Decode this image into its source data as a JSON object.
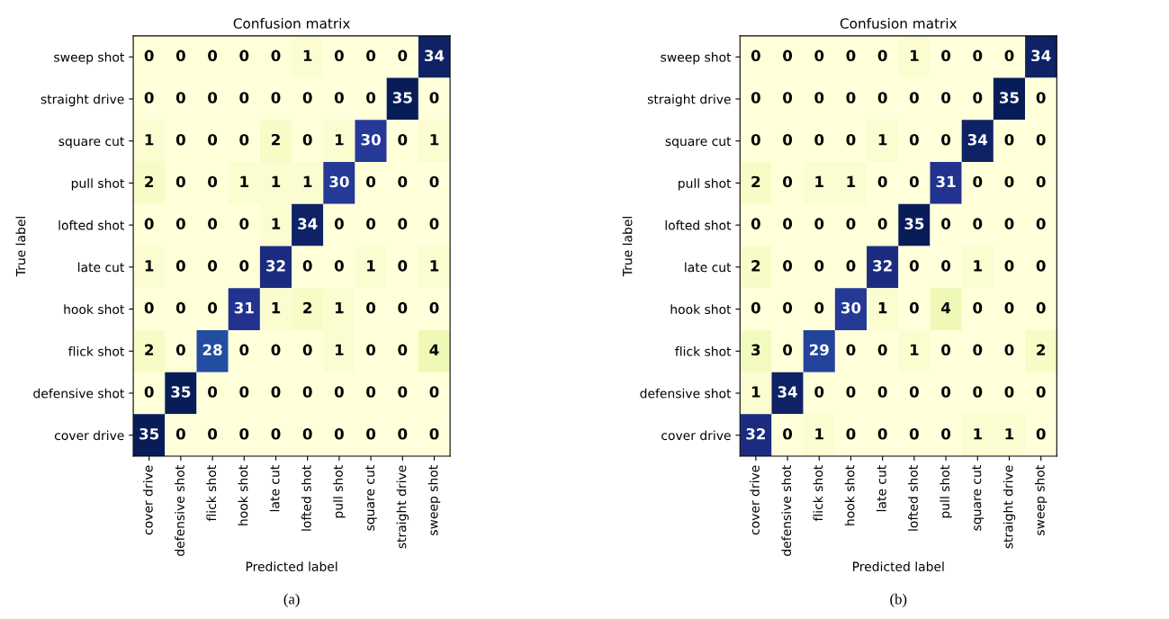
{
  "chart_data": [
    {
      "type": "heatmap",
      "title": "Confusion matrix",
      "xlabel": "Predicted label",
      "ylabel": "True label",
      "annotations": [
        "(a)"
      ],
      "data_labels": true,
      "grid": false,
      "categories": [
        "cover drive",
        "defensive shot",
        "flick shot",
        "hook shot",
        "late cut",
        "lofted shot",
        "pull shot",
        "square cut",
        "straight drive",
        "sweep shot"
      ],
      "y_categories": [
        "sweep shot",
        "straight drive",
        "square cut",
        "pull shot",
        "lofted shot",
        "late cut",
        "hook shot",
        "flick shot",
        "defensive shot",
        "cover drive"
      ],
      "cells": [
        [
          0,
          0,
          0,
          0,
          0,
          1,
          0,
          0,
          0,
          34
        ],
        [
          0,
          0,
          0,
          0,
          0,
          0,
          0,
          0,
          35,
          0
        ],
        [
          1,
          0,
          0,
          0,
          2,
          0,
          1,
          30,
          0,
          1
        ],
        [
          2,
          0,
          0,
          1,
          1,
          1,
          30,
          0,
          0,
          0
        ],
        [
          0,
          0,
          0,
          0,
          1,
          34,
          0,
          0,
          0,
          0
        ],
        [
          1,
          0,
          0,
          0,
          32,
          0,
          0,
          1,
          0,
          1
        ],
        [
          0,
          0,
          0,
          31,
          1,
          2,
          1,
          0,
          0,
          0
        ],
        [
          2,
          0,
          28,
          0,
          0,
          0,
          1,
          0,
          0,
          4
        ],
        [
          0,
          35,
          0,
          0,
          0,
          0,
          0,
          0,
          0,
          0
        ],
        [
          35,
          0,
          0,
          0,
          0,
          0,
          0,
          0,
          0,
          0
        ]
      ]
    },
    {
      "type": "heatmap",
      "title": "Confusion matrix",
      "xlabel": "Predicted label",
      "ylabel": "True label",
      "annotations": [
        "(b)"
      ],
      "data_labels": true,
      "grid": false,
      "categories": [
        "cover drive",
        "defensive shot",
        "flick shot",
        "hook shot",
        "late cut",
        "lofted shot",
        "pull shot",
        "square cut",
        "straight drive",
        "sweep shot"
      ],
      "y_categories": [
        "sweep shot",
        "straight drive",
        "square cut",
        "pull shot",
        "lofted shot",
        "late cut",
        "hook shot",
        "flick shot",
        "defensive shot",
        "cover drive"
      ],
      "cells": [
        [
          0,
          0,
          0,
          0,
          0,
          1,
          0,
          0,
          0,
          34
        ],
        [
          0,
          0,
          0,
          0,
          0,
          0,
          0,
          0,
          35,
          0
        ],
        [
          0,
          0,
          0,
          0,
          1,
          0,
          0,
          34,
          0,
          0
        ],
        [
          2,
          0,
          1,
          1,
          0,
          0,
          31,
          0,
          0,
          0
        ],
        [
          0,
          0,
          0,
          0,
          0,
          35,
          0,
          0,
          0,
          0
        ],
        [
          2,
          0,
          0,
          0,
          32,
          0,
          0,
          1,
          0,
          0
        ],
        [
          0,
          0,
          0,
          30,
          1,
          0,
          4,
          0,
          0,
          0
        ],
        [
          3,
          0,
          29,
          0,
          0,
          1,
          0,
          0,
          0,
          2
        ],
        [
          1,
          34,
          0,
          0,
          0,
          0,
          0,
          0,
          0,
          0
        ],
        [
          32,
          0,
          1,
          0,
          0,
          0,
          0,
          1,
          1,
          0
        ]
      ]
    }
  ]
}
